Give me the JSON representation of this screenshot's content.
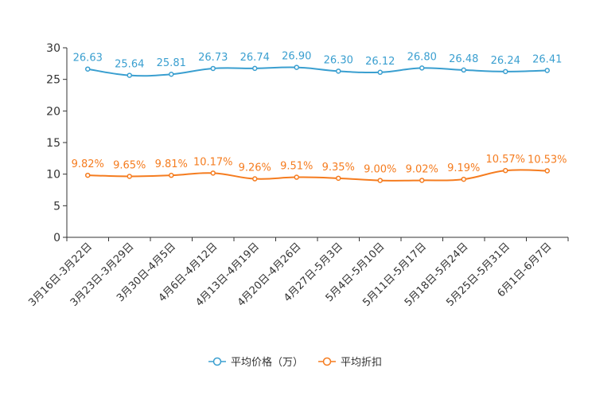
{
  "chart_data": {
    "type": "line",
    "categories": [
      "3月16日-3月22日",
      "3月23日-3月29日",
      "3月30日-4月5日",
      "4月6日-4月12日",
      "4月13日-4月19日",
      "4月20日-4月26日",
      "4月27日-5月3日",
      "5月4日-5月10日",
      "5月11日-5月17日",
      "5月18日-5月24日",
      "5月25日-5月31日",
      "6月1日-6月7日"
    ],
    "ylim": [
      0,
      30
    ],
    "yticks": [
      "0",
      "5",
      "10",
      "15",
      "20",
      "25",
      "30"
    ],
    "grid": false,
    "legend_position": "bottom",
    "series": [
      {
        "name": "平均价格（万）",
        "color": "#3a9fd0",
        "values": [
          26.63,
          25.64,
          25.81,
          26.73,
          26.74,
          26.9,
          26.3,
          26.12,
          26.8,
          26.48,
          26.24,
          26.41
        ],
        "labels": [
          "26.63",
          "25.64",
          "25.81",
          "26.73",
          "26.74",
          "26.90",
          "26.30",
          "26.12",
          "26.80",
          "26.48",
          "26.24",
          "26.41"
        ]
      },
      {
        "name": "平均折扣",
        "color": "#f57c1f",
        "values": [
          9.82,
          9.65,
          9.81,
          10.17,
          9.26,
          9.51,
          9.35,
          9.0,
          9.02,
          9.19,
          10.57,
          10.53
        ],
        "labels": [
          "9.82%",
          "9.65%",
          "9.81%",
          "10.17%",
          "9.26%",
          "9.51%",
          "9.35%",
          "9.00%",
          "9.02%",
          "9.19%",
          "10.57%",
          "10.53%"
        ]
      }
    ]
  }
}
